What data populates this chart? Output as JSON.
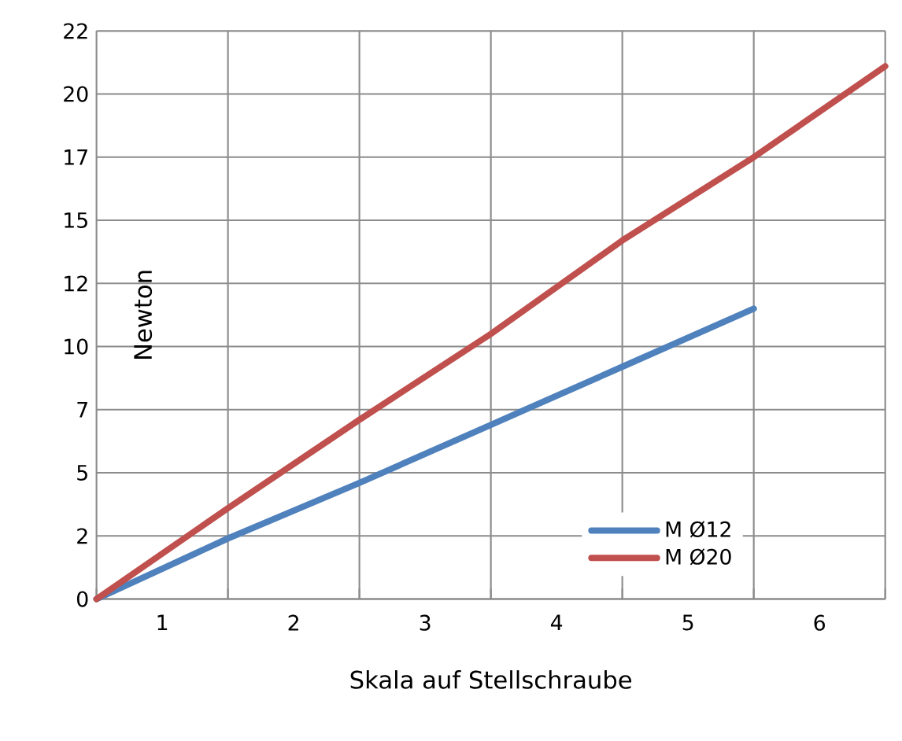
{
  "chart_data": {
    "type": "line",
    "xlabel": "Skala auf Stellschraube",
    "ylabel": "Newton",
    "xlim": [
      0,
      6
    ],
    "ylim": [
      0,
      22.5
    ],
    "xticks": [
      {
        "value": 0,
        "label": null
      },
      {
        "value": 0.5,
        "label": "1"
      },
      {
        "value": 1,
        "label": null
      },
      {
        "value": 1.5,
        "label": "2"
      },
      {
        "value": 2,
        "label": null
      },
      {
        "value": 2.5,
        "label": "3"
      },
      {
        "value": 3,
        "label": null
      },
      {
        "value": 3.5,
        "label": "4"
      },
      {
        "value": 4,
        "label": null
      },
      {
        "value": 4.5,
        "label": "5"
      },
      {
        "value": 5,
        "label": null
      },
      {
        "value": 5.5,
        "label": "6"
      },
      {
        "value": 6,
        "label": null
      }
    ],
    "yticks": [
      0,
      {
        "value": 2.5,
        "label": "2"
      },
      5,
      {
        "value": 7.5,
        "label": "7"
      },
      10,
      {
        "value": 12.5,
        "label": "12"
      },
      15,
      {
        "value": 17.5,
        "label": "17"
      },
      20,
      {
        "value": 22.5,
        "label": "22"
      }
    ],
    "grid": true,
    "legend": "bottom right",
    "marker": "none",
    "line_style": "solid",
    "series": [
      {
        "name": "M Ø12",
        "color": "#4f81bd",
        "x": [
          0,
          1,
          2,
          3,
          4,
          5
        ],
        "values": [
          0,
          2.4,
          4.6,
          6.9,
          9.2,
          11.5
        ]
      },
      {
        "name": "M Ø20",
        "color": "#c0504d",
        "x": [
          0,
          1,
          2,
          3,
          4,
          5,
          6
        ],
        "values": [
          0,
          3.6,
          7.1,
          10.5,
          14.2,
          17.5,
          21.1
        ]
      }
    ]
  }
}
